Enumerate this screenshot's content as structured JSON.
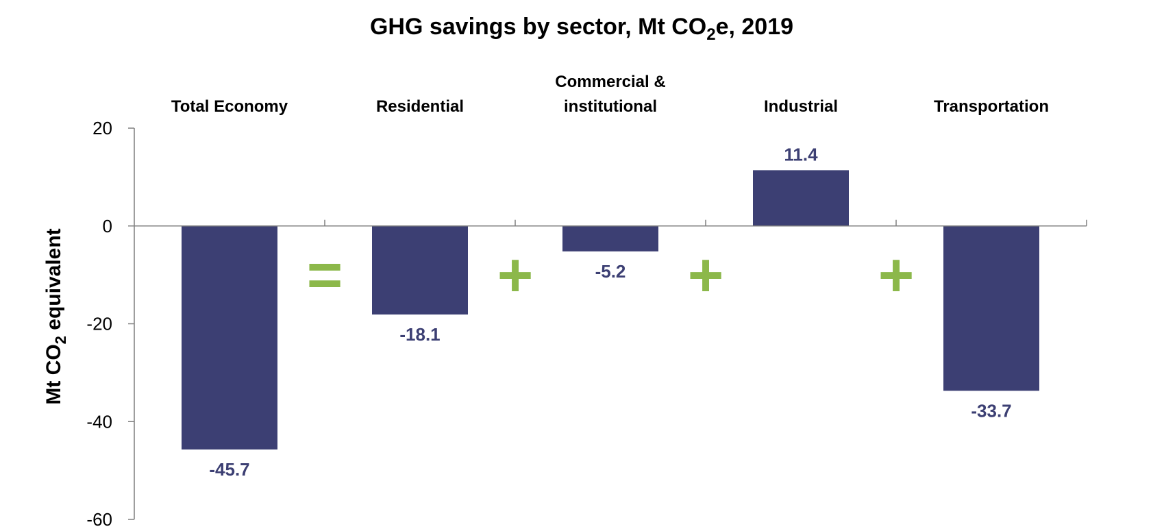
{
  "chart_data": {
    "type": "bar",
    "title": {
      "main": "GHG savings by sector, Mt CO",
      "subscript": "2",
      "suffix": "e, 2019"
    },
    "ylabel": {
      "main": "Mt CO",
      "subscript": "2",
      "suffix": " equivalent"
    },
    "xlabel": "",
    "categories": [
      [
        "Total Economy"
      ],
      [
        "Residential"
      ],
      [
        "Commercial &",
        "institutional"
      ],
      [
        "Industrial"
      ],
      [
        "Transportation"
      ]
    ],
    "values": [
      -45.7,
      -18.1,
      -5.2,
      11.4,
      -33.7
    ],
    "value_labels": [
      "-45.7",
      "-18.1",
      "-5.2",
      "11.4",
      "-33.7"
    ],
    "ylim": [
      -60,
      20
    ],
    "yticks": [
      20,
      0,
      -20,
      -40,
      -60
    ],
    "ytick_labels": [
      "20",
      "0",
      "-20",
      "-40",
      "-60"
    ],
    "operators": [
      "=",
      "+",
      "+",
      "+"
    ],
    "grid": false,
    "legend": "none",
    "colors": {
      "bar": "#3c3f73",
      "data_label": "#3c3f73",
      "operator": "#8cb84a",
      "axis": "#7f7f7f"
    }
  }
}
